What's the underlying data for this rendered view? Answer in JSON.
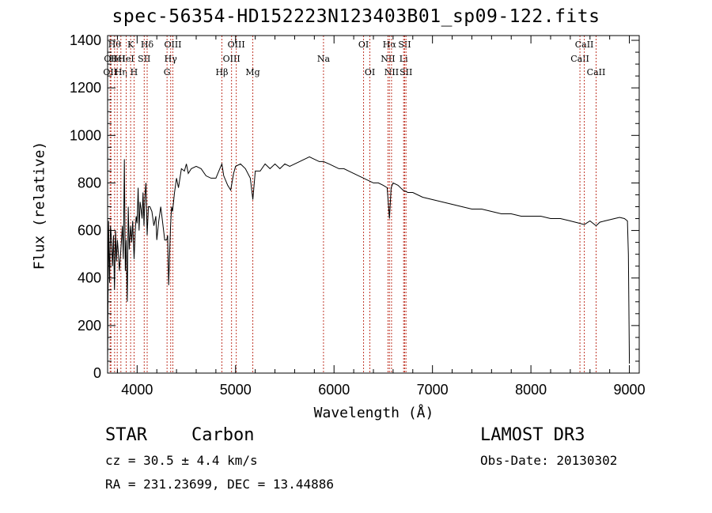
{
  "chart_data": {
    "type": "line",
    "title": "spec-56354-HD152223N123403B01_sp09-122.fits",
    "xlabel": "Wavelength (Å)",
    "ylabel": "Flux (relative)",
    "xlim": [
      3700,
      9100
    ],
    "ylim": [
      0,
      1420
    ],
    "xticks": [
      4000,
      5000,
      6000,
      7000,
      8000,
      9000
    ],
    "yticks": [
      0,
      200,
      400,
      600,
      800,
      1000,
      1200,
      1400
    ],
    "series": [
      {
        "name": "flux",
        "x": [
          3700,
          3710,
          3720,
          3730,
          3740,
          3750,
          3760,
          3770,
          3780,
          3790,
          3800,
          3810,
          3820,
          3835,
          3850,
          3860,
          3870,
          3880,
          3889,
          3900,
          3910,
          3920,
          3934,
          3945,
          3955,
          3969,
          3980,
          3990,
          4000,
          4010,
          4020,
          4030,
          4040,
          4050,
          4060,
          4070,
          4080,
          4090,
          4102,
          4115,
          4130,
          4150,
          4170,
          4190,
          4200,
          4220,
          4240,
          4260,
          4280,
          4300,
          4310,
          4320,
          4330,
          4340,
          4350,
          4360,
          4380,
          4400,
          4420,
          4450,
          4480,
          4500,
          4520,
          4550,
          4600,
          4650,
          4700,
          4750,
          4800,
          4850,
          4861,
          4880,
          4920,
          4950,
          4980,
          5000,
          5050,
          5100,
          5150,
          5175,
          5200,
          5250,
          5300,
          5350,
          5400,
          5450,
          5500,
          5550,
          5600,
          5650,
          5700,
          5750,
          5800,
          5850,
          5893,
          5950,
          6000,
          6050,
          6100,
          6150,
          6200,
          6250,
          6300,
          6350,
          6400,
          6450,
          6500,
          6540,
          6563,
          6580,
          6600,
          6650,
          6700,
          6750,
          6800,
          6900,
          7000,
          7100,
          7200,
          7300,
          7400,
          7500,
          7600,
          7700,
          7800,
          7900,
          8000,
          8100,
          8200,
          8300,
          8400,
          8498,
          8542,
          8600,
          8662,
          8700,
          8750,
          8800,
          8850,
          8900,
          8950,
          8980,
          8990,
          9000
        ],
        "values": [
          30,
          640,
          380,
          620,
          560,
          450,
          580,
          350,
          600,
          470,
          560,
          500,
          430,
          520,
          620,
          480,
          900,
          430,
          560,
          300,
          700,
          520,
          620,
          550,
          640,
          480,
          590,
          660,
          630,
          780,
          600,
          720,
          690,
          650,
          760,
          620,
          750,
          800,
          580,
          700,
          700,
          680,
          620,
          660,
          560,
          640,
          700,
          630,
          560,
          560,
          580,
          370,
          500,
          620,
          700,
          680,
          760,
          820,
          780,
          860,
          850,
          880,
          840,
          860,
          870,
          860,
          830,
          820,
          820,
          870,
          880,
          830,
          790,
          770,
          840,
          870,
          880,
          860,
          820,
          730,
          850,
          850,
          880,
          860,
          880,
          860,
          880,
          870,
          880,
          890,
          900,
          910,
          900,
          890,
          890,
          880,
          870,
          860,
          860,
          850,
          840,
          830,
          820,
          810,
          800,
          800,
          790,
          780,
          650,
          780,
          800,
          790,
          770,
          760,
          760,
          740,
          730,
          720,
          710,
          700,
          690,
          690,
          680,
          670,
          670,
          660,
          660,
          660,
          650,
          650,
          640,
          630,
          625,
          640,
          620,
          635,
          640,
          645,
          650,
          655,
          650,
          640,
          500,
          40
        ]
      }
    ],
    "line_markers": [
      {
        "wl": 3726,
        "row": 2,
        "label": "OII"
      },
      {
        "wl": 3734,
        "row": 1,
        "label": "OII"
      },
      {
        "wl": 3771,
        "row": 0,
        "label": "Hθ"
      },
      {
        "wl": 3798,
        "row": 1,
        "label": "HeI"
      },
      {
        "wl": 3835,
        "row": 2,
        "label": "Hη"
      },
      {
        "wl": 3889,
        "row": 1,
        "label": "HeI"
      },
      {
        "wl": 3934,
        "row": 0,
        "label": "K"
      },
      {
        "wl": 3969,
        "row": 2,
        "label": "H"
      },
      {
        "wl": 4072,
        "row": 1,
        "label": "SII"
      },
      {
        "wl": 4102,
        "row": 0,
        "label": "Hδ"
      },
      {
        "wl": 4304,
        "row": 2,
        "label": "G"
      },
      {
        "wl": 4341,
        "row": 1,
        "label": "Hγ"
      },
      {
        "wl": 4363,
        "row": 0,
        "label": "OIII"
      },
      {
        "wl": 4861,
        "row": 2,
        "label": "Hβ"
      },
      {
        "wl": 4959,
        "row": 1,
        "label": "OIII"
      },
      {
        "wl": 5007,
        "row": 0,
        "label": "OIII"
      },
      {
        "wl": 5175,
        "row": 2,
        "label": "Mg"
      },
      {
        "wl": 5893,
        "row": 1,
        "label": "Na"
      },
      {
        "wl": 6300,
        "row": 0,
        "label": "OI"
      },
      {
        "wl": 6364,
        "row": 2,
        "label": "OI"
      },
      {
        "wl": 6548,
        "row": 1,
        "label": "NII"
      },
      {
        "wl": 6563,
        "row": 0,
        "label": "Hα"
      },
      {
        "wl": 6584,
        "row": 2,
        "label": "NII"
      },
      {
        "wl": 6707,
        "row": 1,
        "label": "Li"
      },
      {
        "wl": 6717,
        "row": 0,
        "label": "SII"
      },
      {
        "wl": 6731,
        "row": 2,
        "label": "SII"
      },
      {
        "wl": 8498,
        "row": 1,
        "label": "CaII"
      },
      {
        "wl": 8542,
        "row": 0,
        "label": "CaII"
      },
      {
        "wl": 8662,
        "row": 2,
        "label": "CaII"
      }
    ],
    "line_color": "#c0392b"
  },
  "info": {
    "class": "STAR",
    "subclass": "Carbon",
    "survey": "LAMOST DR3",
    "cz": "cz = 30.5 ± 4.4 km/s",
    "obs_date": "Obs-Date: 20130302",
    "radec": "RA = 231.23699, DEC =  13.44886"
  }
}
